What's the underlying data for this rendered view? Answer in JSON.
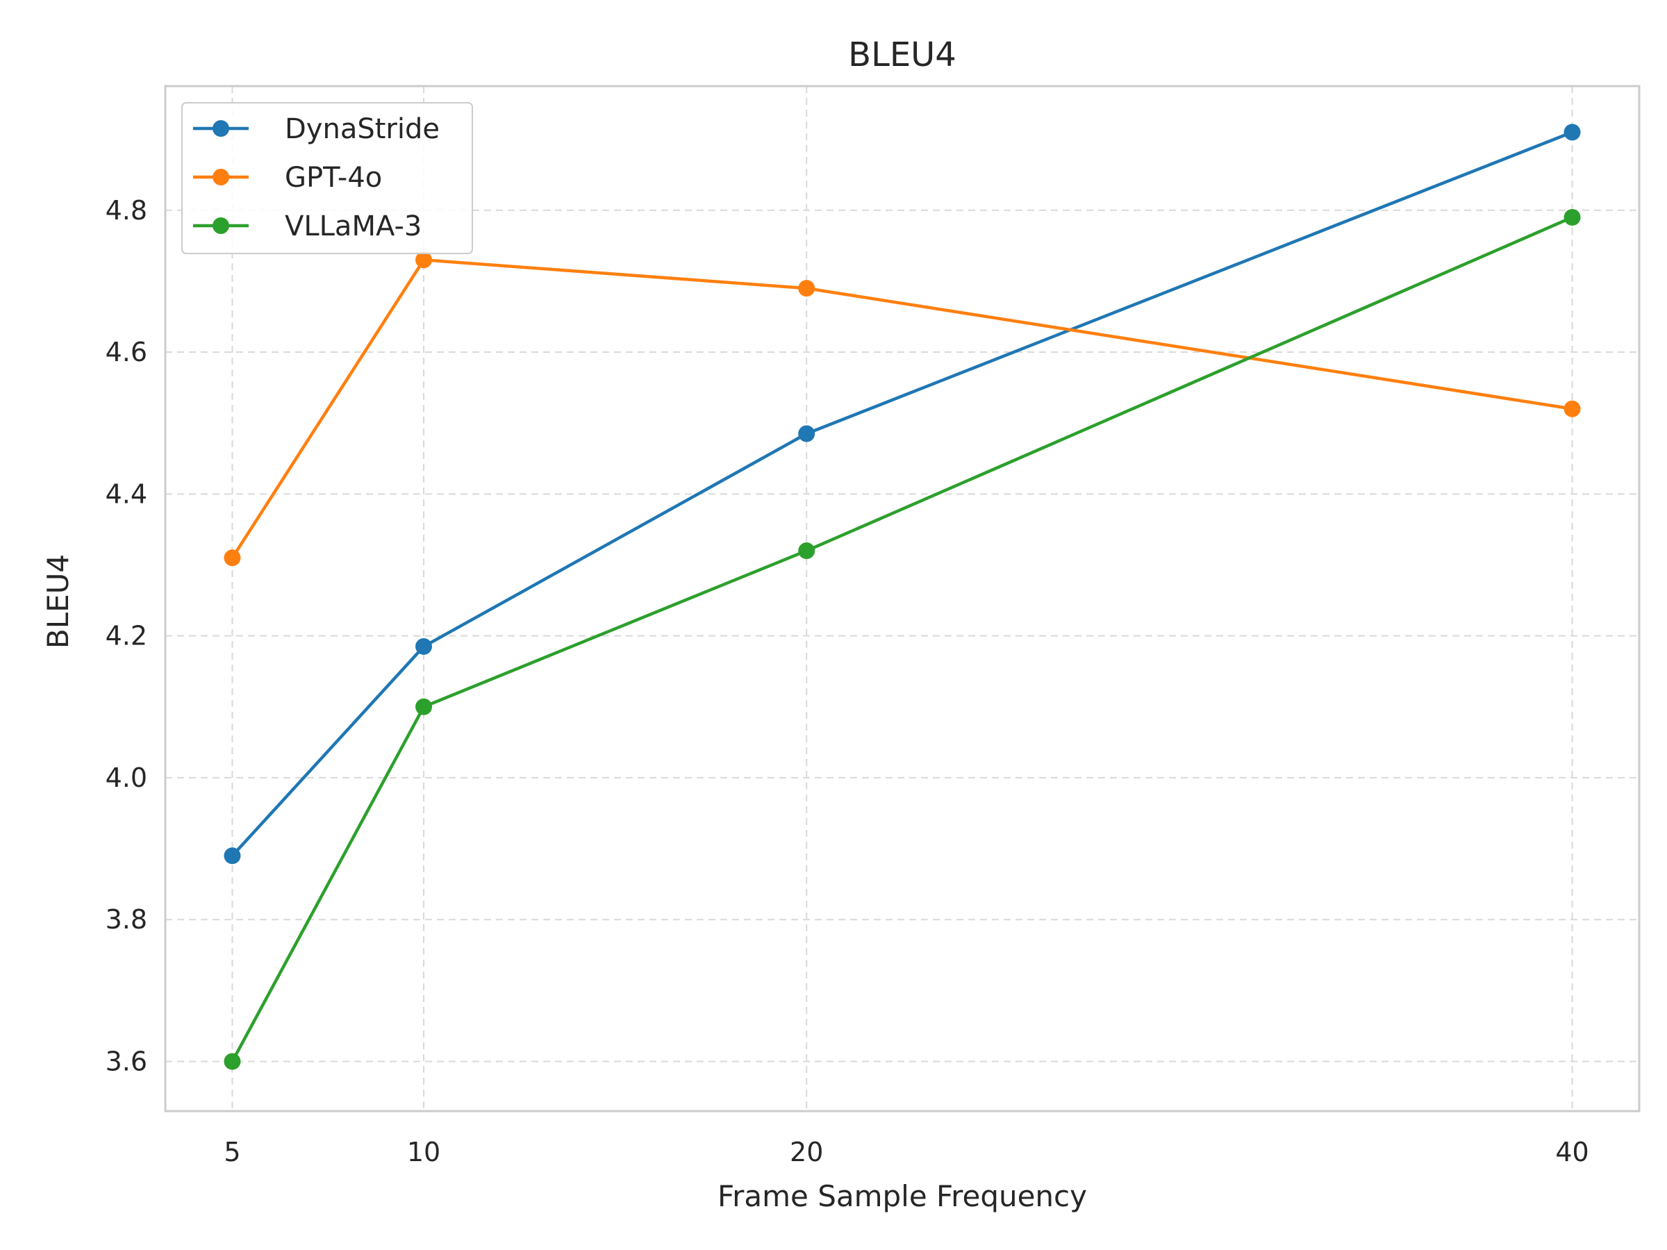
{
  "chart_data": {
    "type": "line",
    "title": "BLEU4",
    "xlabel": "Frame Sample Frequency",
    "ylabel": "BLEU4",
    "x": [
      5,
      10,
      20,
      40
    ],
    "x_tick_labels": [
      "5",
      "10",
      "20",
      "40"
    ],
    "y_ticks": [
      3.6,
      3.8,
      4.0,
      4.2,
      4.4,
      4.6,
      4.8
    ],
    "y_tick_labels": [
      "3.6",
      "3.8",
      "4.0",
      "4.2",
      "4.4",
      "4.6",
      "4.8"
    ],
    "xlim": [
      3.25,
      41.75
    ],
    "ylim": [
      3.53,
      4.975
    ],
    "grid": true,
    "legend_position": "top-left",
    "series": [
      {
        "name": "DynaStride",
        "color": "#1f77b4",
        "values": [
          3.89,
          4.185,
          4.485,
          4.91
        ]
      },
      {
        "name": "GPT-4o",
        "color": "#ff7f0e",
        "values": [
          4.31,
          4.73,
          4.69,
          4.52
        ]
      },
      {
        "name": "VLLaMA-3",
        "color": "#2ca02c",
        "values": [
          3.6,
          4.1,
          4.32,
          4.79
        ]
      }
    ]
  }
}
